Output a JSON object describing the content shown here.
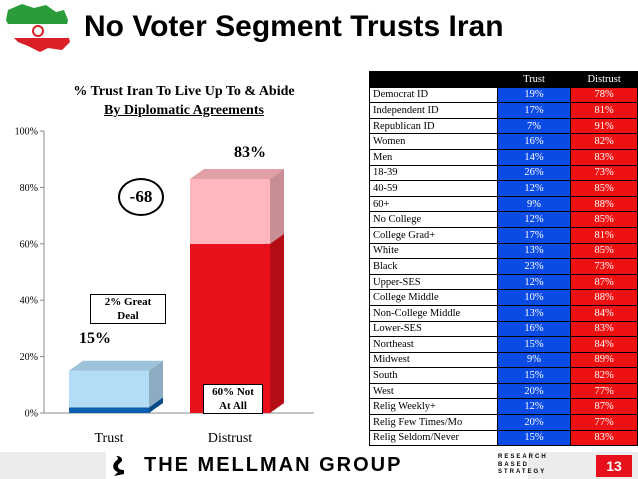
{
  "title": "No Voter Segment Trusts Iran",
  "chart_title_line1": "% Trust Iran To Live Up To & Abide",
  "chart_title_line2": "By Diplomatic Agreements",
  "difference_label": "-68",
  "great_deal_label_1": "2% Great",
  "great_deal_label_2": "Deal",
  "not_at_all_label_1": "60% Not",
  "not_at_all_label_2": "At All",
  "chart_data": {
    "type": "bar",
    "stacked": true,
    "categories": [
      "Trust",
      "Distrust"
    ],
    "totals": [
      15,
      83
    ],
    "total_labels": [
      "15%",
      "83%"
    ],
    "series": [
      {
        "values": [
          2,
          60
        ],
        "colors": [
          "#0b5fae",
          "#e8111b"
        ]
      },
      {
        "values": [
          13,
          23
        ],
        "colors": [
          "#b3dcf7",
          "#ffb6bd"
        ]
      }
    ],
    "ylim": [
      0,
      100
    ],
    "yticks": [
      "0%",
      "20%",
      "40%",
      "60%",
      "80%",
      "100%"
    ],
    "grid": false
  },
  "table": {
    "headers": [
      "",
      "Trust",
      "Distrust"
    ],
    "rows": [
      [
        "Democrat ID",
        "19%",
        "78%"
      ],
      [
        "Independent ID",
        "17%",
        "81%"
      ],
      [
        "Republican ID",
        "7%",
        "91%"
      ],
      [
        "Women",
        "16%",
        "82%"
      ],
      [
        "Men",
        "14%",
        "83%"
      ],
      [
        "18-39",
        "26%",
        "73%"
      ],
      [
        "40-59",
        "12%",
        "85%"
      ],
      [
        "60+",
        "9%",
        "88%"
      ],
      [
        "No College",
        "12%",
        "85%"
      ],
      [
        "College Grad+",
        "17%",
        "81%"
      ],
      [
        "White",
        "13%",
        "85%"
      ],
      [
        "Black",
        "23%",
        "73%"
      ],
      [
        "Upper-SES",
        "12%",
        "87%"
      ],
      [
        "College Middle",
        "10%",
        "88%"
      ],
      [
        "Non-College Middle",
        "13%",
        "84%"
      ],
      [
        "Lower-SES",
        "16%",
        "83%"
      ],
      [
        "Northeast",
        "15%",
        "84%"
      ],
      [
        "Midwest",
        "9%",
        "89%"
      ],
      [
        "South",
        "15%",
        "82%"
      ],
      [
        "West",
        "20%",
        "77%"
      ],
      [
        "Relig Weekly+",
        "12%",
        "87%"
      ],
      [
        "Relig Few Times/Mo",
        "20%",
        "77%"
      ],
      [
        "Relig Seldom/Never",
        "15%",
        "83%"
      ]
    ]
  },
  "footer": {
    "logo_text": "THE MELLMAN GROUP",
    "tagline": [
      "RESEARCH",
      "BASED",
      "STRATEGY"
    ],
    "page_number": "13"
  },
  "flag_emblem": "iran-flag-map-icon"
}
